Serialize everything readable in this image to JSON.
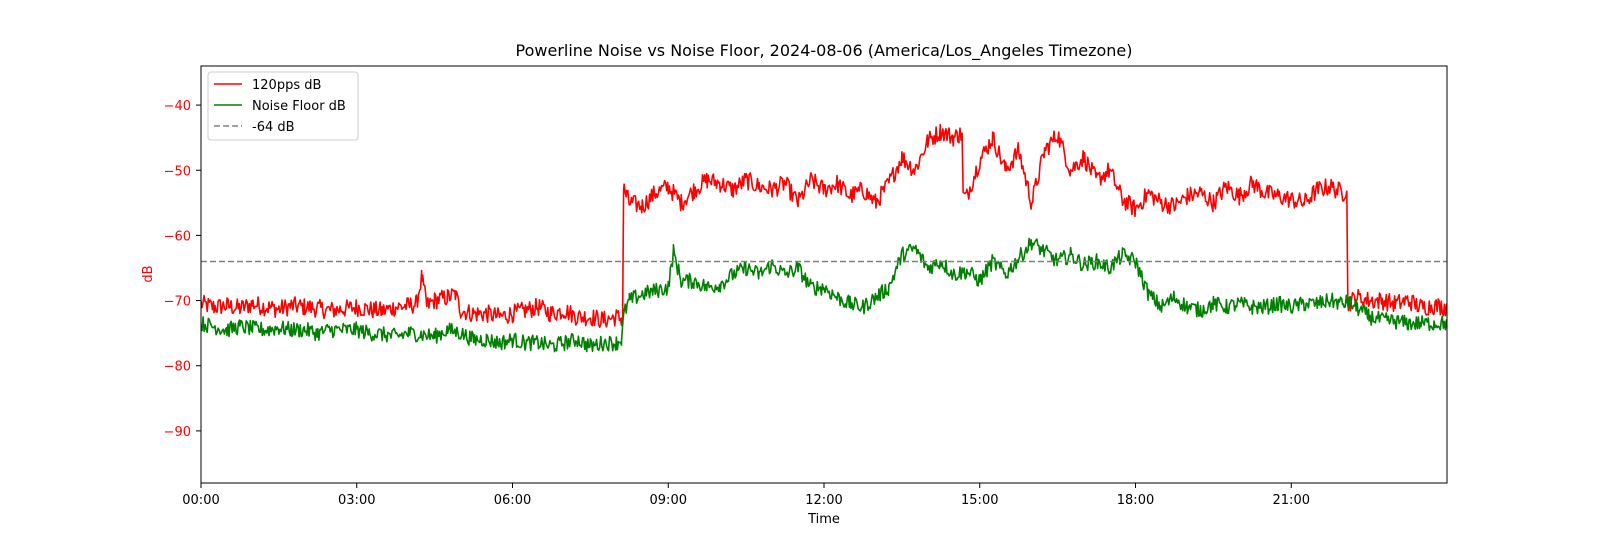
{
  "chart_data": {
    "type": "line",
    "title": "Powerline Noise vs Noise Floor, 2024-08-06 (America/Los_Angeles Timezone)",
    "xlabel": "Time",
    "ylabel": "dB",
    "xlim_hours": [
      0,
      24
    ],
    "ylim": [
      -98,
      -34
    ],
    "x_ticks": [
      {
        "hour": 0,
        "label": "00:00"
      },
      {
        "hour": 3,
        "label": "03:00"
      },
      {
        "hour": 6,
        "label": "06:00"
      },
      {
        "hour": 9,
        "label": "09:00"
      },
      {
        "hour": 12,
        "label": "12:00"
      },
      {
        "hour": 15,
        "label": "15:00"
      },
      {
        "hour": 18,
        "label": "18:00"
      },
      {
        "hour": 21,
        "label": "21:00"
      }
    ],
    "y_ticks": [
      {
        "value": -40,
        "label": "−40"
      },
      {
        "value": -50,
        "label": "−50"
      },
      {
        "value": -60,
        "label": "−60"
      },
      {
        "value": -70,
        "label": "−70"
      },
      {
        "value": -80,
        "label": "−80"
      },
      {
        "value": -90,
        "label": "−90"
      }
    ],
    "grid": false,
    "legend_position": "top-left",
    "ylabel_color": "#ff0000",
    "series": [
      {
        "name": "120pps dB",
        "color": "#ff0000",
        "style": "solid",
        "x_hours": [
          0,
          0.25,
          0.5,
          0.75,
          1,
          1.25,
          1.5,
          1.75,
          2,
          2.25,
          2.5,
          2.75,
          3,
          3.25,
          3.5,
          3.75,
          4,
          4.15,
          4.25,
          4.35,
          4.5,
          4.75,
          4.9,
          5,
          5.25,
          5.5,
          5.75,
          6,
          6.25,
          6.5,
          6.75,
          7,
          7.25,
          7.5,
          7.75,
          8,
          8.1,
          8.15,
          8.2,
          8.25,
          8.5,
          8.75,
          9,
          9.25,
          9.5,
          9.75,
          10,
          10.25,
          10.5,
          10.75,
          11,
          11.25,
          11.5,
          11.75,
          12,
          12.25,
          12.5,
          12.75,
          13,
          13.25,
          13.5,
          13.75,
          14,
          14.25,
          14.5,
          14.6,
          14.75,
          15,
          15.25,
          15.5,
          15.75,
          16,
          16.25,
          16.5,
          16.75,
          17,
          17.25,
          17.5,
          17.75,
          18,
          18.25,
          18.5,
          18.75,
          19,
          19.25,
          19.5,
          19.75,
          20,
          20.25,
          20.5,
          20.75,
          21,
          21.25,
          21.5,
          21.75,
          22,
          22.05,
          22.1,
          22.25,
          22.5,
          22.75,
          23,
          23.25,
          23.5,
          23.75,
          24
        ],
        "y": [
          -70.5,
          -71,
          -70.8,
          -71.2,
          -70.5,
          -71,
          -71.3,
          -70.8,
          -71,
          -71.2,
          -71.5,
          -71.3,
          -71,
          -71.4,
          -71.6,
          -71,
          -70.8,
          -70.5,
          -66.5,
          -70.8,
          -70,
          -69.5,
          -69,
          -71.5,
          -72,
          -72,
          -72.5,
          -72,
          -71.5,
          -71,
          -72,
          -71.5,
          -72.5,
          -72.5,
          -73,
          -72.5,
          -72.8,
          -53,
          -54,
          -55,
          -55.5,
          -53.5,
          -52.5,
          -55,
          -53,
          -51.5,
          -52,
          -53,
          -51.5,
          -52.5,
          -53,
          -52,
          -55,
          -51.5,
          -53,
          -52,
          -54,
          -53,
          -55,
          -52,
          -48,
          -50,
          -45.5,
          -44,
          -45,
          -44.5,
          -54,
          -48.5,
          -45,
          -50,
          -47,
          -55,
          -47,
          -44.5,
          -50,
          -48,
          -51.5,
          -50,
          -54.5,
          -56,
          -53.5,
          -55,
          -55.5,
          -54,
          -53.5,
          -55,
          -52.5,
          -54,
          -52,
          -53.5,
          -54,
          -54.5,
          -55,
          -53,
          -52.5,
          -53.5,
          -53,
          -70.5,
          -69.5,
          -70,
          -70,
          -70.5,
          -70,
          -71,
          -70.8,
          -71
        ]
      },
      {
        "name": "Noise Floor dB",
        "color": "#008000",
        "style": "solid",
        "x_hours": [
          0,
          0.25,
          0.5,
          0.75,
          1,
          1.25,
          1.5,
          1.75,
          2,
          2.25,
          2.5,
          2.75,
          3,
          3.25,
          3.5,
          3.75,
          4,
          4.25,
          4.5,
          4.75,
          5,
          5.25,
          5.5,
          5.75,
          6,
          6.25,
          6.5,
          6.75,
          7,
          7.25,
          7.5,
          7.75,
          8,
          8.1,
          8.15,
          8.25,
          8.5,
          8.75,
          9,
          9.1,
          9.25,
          9.5,
          9.75,
          10,
          10.25,
          10.5,
          10.75,
          11,
          11.25,
          11.5,
          11.75,
          12,
          12.25,
          12.5,
          12.75,
          13,
          13.25,
          13.5,
          13.75,
          14,
          14.25,
          14.5,
          14.75,
          15,
          15.25,
          15.5,
          15.75,
          16,
          16.25,
          16.5,
          16.75,
          17,
          17.25,
          17.5,
          17.75,
          18,
          18.25,
          18.5,
          18.75,
          19,
          19.25,
          19.5,
          19.75,
          20,
          20.25,
          20.5,
          20.75,
          21,
          21.25,
          21.5,
          21.75,
          22,
          22.1,
          22.25,
          22.5,
          22.75,
          23,
          23.25,
          23.5,
          23.75,
          24
        ],
        "y": [
          -73.5,
          -74,
          -74.5,
          -74,
          -74.3,
          -74.5,
          -74.2,
          -74.5,
          -74.5,
          -75,
          -74.5,
          -74.5,
          -74.5,
          -75,
          -75.2,
          -75.5,
          -75,
          -75.2,
          -75.5,
          -74.5,
          -75,
          -76,
          -76,
          -76.5,
          -76,
          -76.5,
          -76.5,
          -77,
          -76.5,
          -76,
          -77,
          -76.5,
          -76.5,
          -76,
          -72,
          -70,
          -69,
          -68.5,
          -68,
          -62.5,
          -67,
          -67,
          -68,
          -67.5,
          -66,
          -65,
          -66,
          -64.5,
          -66,
          -65,
          -68,
          -68,
          -69.5,
          -70.5,
          -71,
          -69.5,
          -68,
          -63,
          -62,
          -65,
          -64,
          -66,
          -65.5,
          -67,
          -64,
          -66,
          -63.5,
          -61,
          -62.5,
          -64,
          -63,
          -64.5,
          -64,
          -65,
          -63,
          -64,
          -69,
          -71,
          -69.5,
          -71,
          -71.5,
          -70.5,
          -71,
          -70.5,
          -71,
          -71,
          -70.5,
          -71,
          -70.5,
          -70.5,
          -70,
          -70.5,
          -70.2,
          -71,
          -72.5,
          -73,
          -73.2,
          -73.5,
          -73.5,
          -73.5,
          -73.5
        ]
      },
      {
        "name": "-64 dB",
        "color": "#808080",
        "style": "dashed",
        "x_hours": [
          0,
          24
        ],
        "y": [
          -64,
          -64
        ]
      }
    ]
  }
}
